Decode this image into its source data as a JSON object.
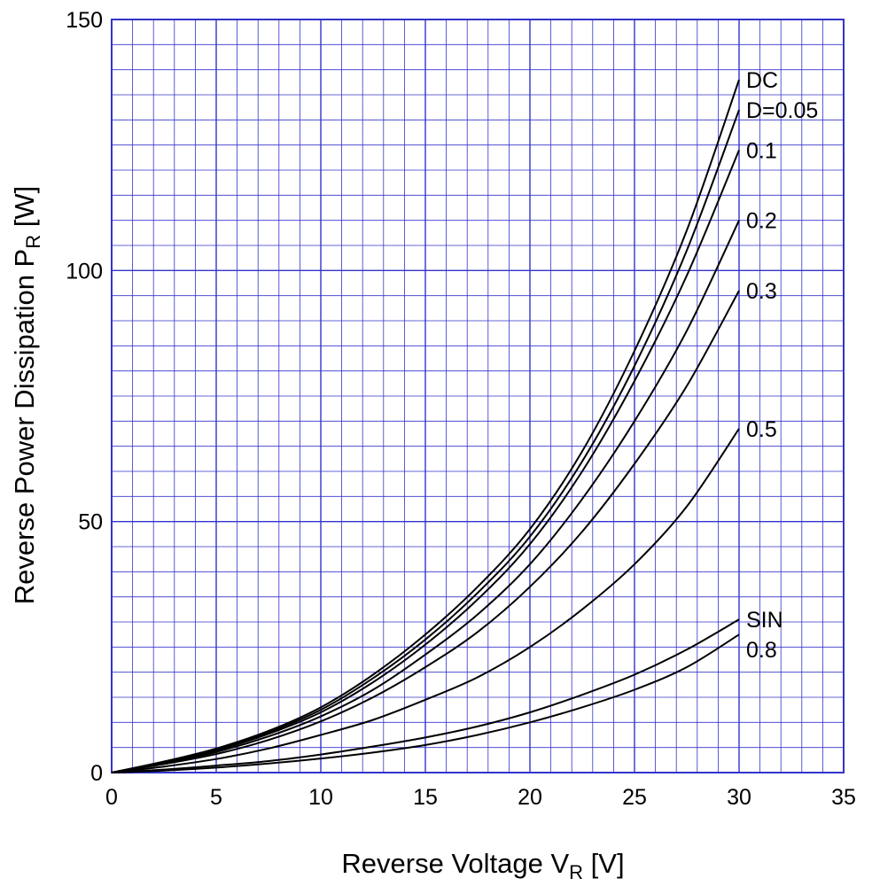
{
  "chart_data": {
    "type": "line",
    "xlabel": {
      "main": "Reverse Voltage  V",
      "sub": "R",
      "unit": "  [V]"
    },
    "ylabel": {
      "main": "Reverse Power Dissipation  P",
      "sub": "R",
      "unit": "  [W]"
    },
    "xlim": [
      0,
      35
    ],
    "ylim": [
      0,
      150
    ],
    "x_ticks": [
      0,
      5,
      10,
      15,
      20,
      25,
      30,
      35
    ],
    "y_ticks": [
      0,
      50,
      100,
      150
    ],
    "x_tick_labels": [
      "0",
      "5",
      "10",
      "15",
      "20",
      "25",
      "30",
      "35"
    ],
    "y_tick_labels": [
      "0",
      "50",
      "100",
      "150"
    ],
    "grid": true,
    "minor_grid": {
      "x_step": 1,
      "y_step": 5
    },
    "colors": {
      "grid": "#3333cc",
      "curve": "#000000",
      "text": "#000000"
    },
    "x": [
      0,
      2.5,
      5,
      7.5,
      10,
      12.5,
      15,
      17.5,
      20,
      22.5,
      25,
      27.5,
      30
    ],
    "series": [
      {
        "name": "DC",
        "label": "DC",
        "values": [
          0,
          2.2,
          4.8,
          8.3,
          13.0,
          19.5,
          27.5,
          37.0,
          48.5,
          64.0,
          84.0,
          108.0,
          138.0
        ]
      },
      {
        "name": "D=0.05",
        "label": "D=0.05",
        "values": [
          0,
          2.1,
          4.6,
          8.0,
          12.5,
          18.8,
          26.5,
          35.8,
          47.0,
          62.0,
          81.0,
          104.0,
          132.0
        ]
      },
      {
        "name": "0.1",
        "label": "0.1",
        "values": [
          0,
          2.0,
          4.4,
          7.7,
          12.0,
          18.0,
          25.5,
          34.5,
          45.5,
          60.0,
          78.0,
          99.0,
          124.0
        ]
      },
      {
        "name": "0.2",
        "label": "0.2",
        "values": [
          0,
          1.9,
          4.1,
          7.2,
          11.2,
          16.5,
          23.5,
          31.5,
          41.5,
          54.5,
          70.0,
          88.0,
          110.0
        ]
      },
      {
        "name": "0.3",
        "label": "0.3",
        "values": [
          0,
          1.7,
          3.7,
          6.5,
          10.2,
          15.0,
          21.0,
          28.0,
          37.0,
          48.0,
          61.5,
          77.0,
          96.0
        ]
      },
      {
        "name": "0.5",
        "label": "0.5",
        "values": [
          0,
          1.2,
          2.7,
          4.8,
          7.5,
          10.5,
          14.5,
          19.0,
          25.0,
          32.5,
          41.5,
          53.0,
          68.5
        ]
      },
      {
        "name": "SIN",
        "label": "SIN",
        "values": [
          0,
          0.6,
          1.4,
          2.3,
          3.6,
          5.2,
          7.0,
          9.2,
          12.0,
          15.5,
          19.5,
          24.5,
          30.5
        ]
      },
      {
        "name": "0.8",
        "label": "0.8",
        "values": [
          0,
          0.4,
          1.0,
          1.8,
          2.8,
          4.0,
          5.5,
          7.5,
          10.0,
          13.0,
          16.5,
          21.0,
          27.5
        ]
      }
    ],
    "label_y": [
      138,
      132,
      124,
      110,
      96,
      68.5,
      30.5,
      24.5
    ]
  }
}
